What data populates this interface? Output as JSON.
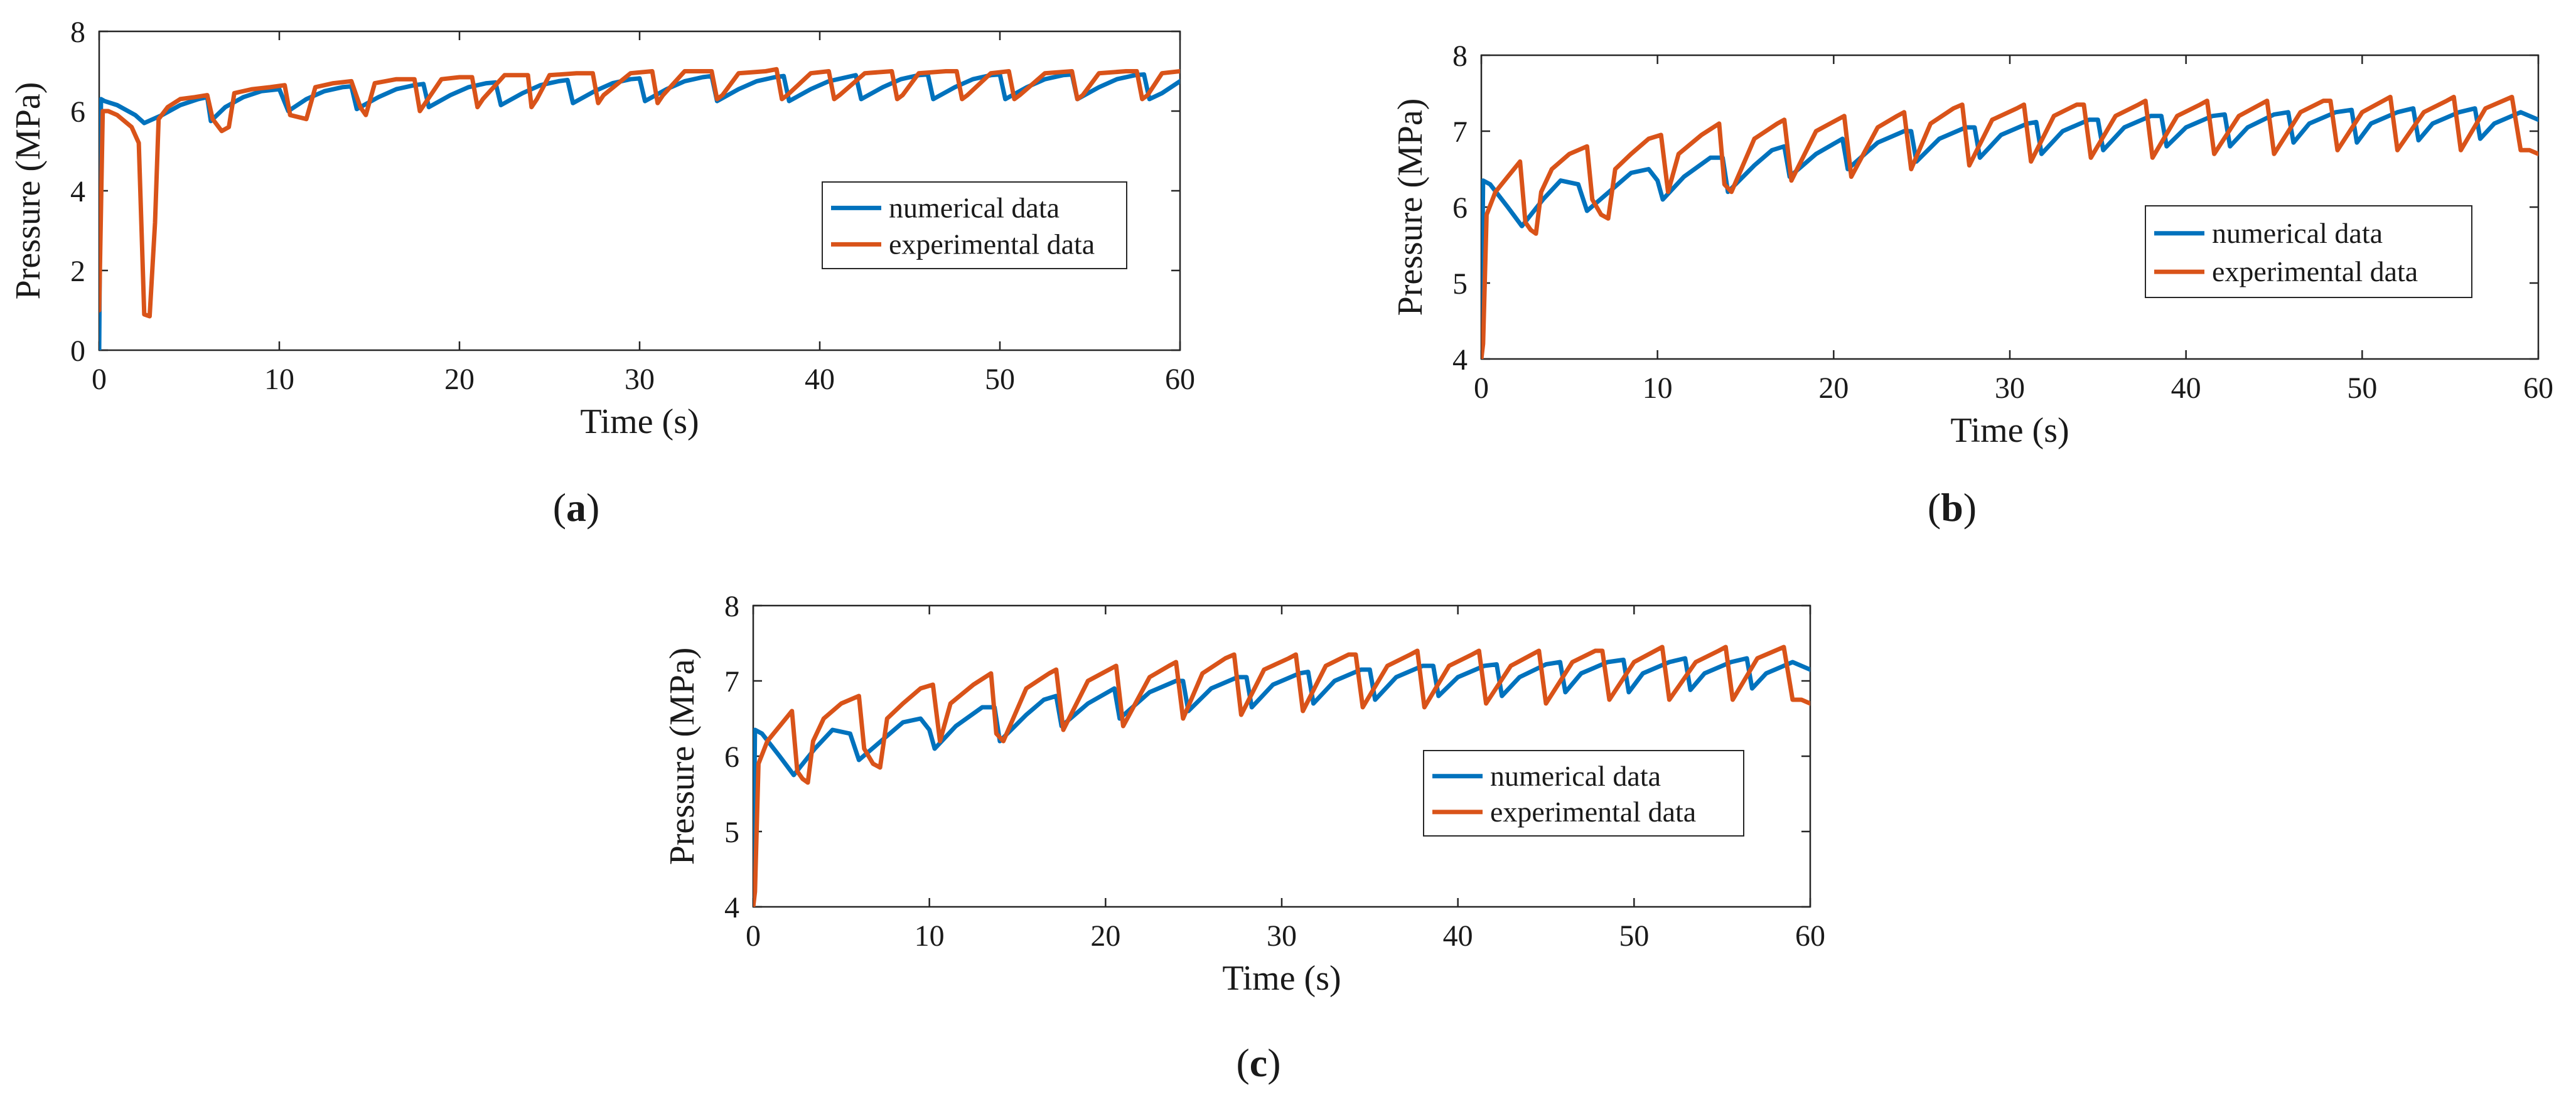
{
  "figure": {
    "panel_labels": [
      {
        "open": "(",
        "letter": "a",
        "close": ")"
      },
      {
        "open": "(",
        "letter": "b",
        "close": ")"
      },
      {
        "open": "(",
        "letter": "c",
        "close": ")"
      }
    ]
  },
  "colors": {
    "numerical": "#0072BD",
    "experimental": "#D95319",
    "axis": "#262626",
    "background": "#ffffff"
  },
  "chart_data": [
    {
      "type": "line",
      "panel": "a",
      "xlabel": "Time (s)",
      "ylabel": "Pressure (MPa)",
      "xlim": [
        0,
        60
      ],
      "ylim": [
        0,
        8
      ],
      "xticks": [
        0,
        10,
        20,
        30,
        40,
        50,
        60
      ],
      "yticks": [
        0,
        2,
        4,
        6,
        8
      ],
      "legend_position": "center-right",
      "series": [
        {
          "name": "numerical data",
          "key": "numerical",
          "x": [
            0,
            0.1,
            0.3,
            1,
            2,
            2.5,
            3.5,
            4.5,
            5.5,
            6,
            6.2,
            7,
            8,
            9,
            10,
            10.5,
            11.5,
            12.5,
            13.5,
            14,
            14.3,
            15.5,
            16.5,
            17.5,
            18,
            18.3,
            19.5,
            20.5,
            21.5,
            22,
            22.3,
            23.5,
            24.5,
            25.5,
            26,
            26.3,
            27.5,
            28.5,
            29.5,
            30,
            30.3,
            31.5,
            32.5,
            33.5,
            34,
            34.3,
            35.5,
            36.5,
            37.5,
            38,
            38.3,
            39.5,
            40.5,
            41.5,
            42,
            42.3,
            43.5,
            44.5,
            45.5,
            46,
            46.3,
            47.5,
            48.5,
            49.5,
            50,
            50.3,
            51.5,
            52.5,
            53.5,
            54,
            54.3,
            55.5,
            56.5,
            57.5,
            58,
            58.3,
            59,
            60
          ],
          "y": [
            0,
            6.3,
            6.25,
            6.15,
            5.9,
            5.7,
            5.9,
            6.15,
            6.3,
            6.35,
            5.75,
            6.1,
            6.35,
            6.5,
            6.55,
            6.0,
            6.3,
            6.5,
            6.6,
            6.62,
            6.05,
            6.35,
            6.55,
            6.65,
            6.68,
            6.1,
            6.4,
            6.6,
            6.7,
            6.72,
            6.15,
            6.45,
            6.65,
            6.75,
            6.78,
            6.2,
            6.5,
            6.7,
            6.8,
            6.82,
            6.25,
            6.55,
            6.75,
            6.85,
            6.88,
            6.25,
            6.55,
            6.75,
            6.85,
            6.88,
            6.25,
            6.55,
            6.75,
            6.85,
            6.9,
            6.3,
            6.6,
            6.8,
            6.9,
            6.92,
            6.3,
            6.6,
            6.8,
            6.9,
            6.92,
            6.3,
            6.6,
            6.8,
            6.9,
            6.92,
            6.3,
            6.6,
            6.8,
            6.9,
            6.92,
            6.3,
            6.45,
            6.75
          ]
        },
        {
          "name": "experimental data",
          "key": "experimental",
          "x": [
            0,
            0.2,
            0.5,
            1.0,
            1.8,
            2.2,
            2.5,
            2.8,
            3.1,
            3.3,
            3.8,
            4.5,
            5.3,
            6.0,
            6.3,
            6.8,
            7.2,
            7.5,
            8.5,
            9.5,
            10.3,
            10.6,
            11.5,
            12.0,
            13.0,
            14.0,
            14.5,
            14.8,
            15.3,
            16.5,
            17.5,
            17.8,
            18.1,
            19.0,
            20.0,
            20.7,
            21.0,
            21.3,
            22.5,
            23.8,
            24.0,
            24.3,
            25.0,
            26.5,
            27.4,
            27.7,
            28.0,
            29.5,
            30.7,
            31.0,
            31.3,
            32.5,
            34.0,
            34.3,
            34.6,
            35.5,
            37.0,
            37.6,
            37.9,
            38.2,
            39.5,
            40.5,
            40.8,
            41.1,
            42.5,
            44.0,
            44.3,
            44.6,
            45.5,
            47.0,
            47.6,
            47.9,
            48.2,
            49.5,
            50.5,
            50.8,
            51.1,
            52.5,
            54.0,
            54.3,
            54.6,
            55.5,
            57.0,
            57.6,
            57.9,
            58.2,
            59.0,
            60
          ],
          "y": [
            1.0,
            6.0,
            6.0,
            5.9,
            5.6,
            5.2,
            0.9,
            0.85,
            3.2,
            5.8,
            6.1,
            6.3,
            6.35,
            6.4,
            5.8,
            5.5,
            5.6,
            6.45,
            6.55,
            6.6,
            6.65,
            5.9,
            5.8,
            6.6,
            6.7,
            6.75,
            6.1,
            5.9,
            6.7,
            6.8,
            6.8,
            6.0,
            6.2,
            6.8,
            6.85,
            6.85,
            6.1,
            6.3,
            6.9,
            6.9,
            6.1,
            6.3,
            6.9,
            6.95,
            6.95,
            6.2,
            6.4,
            6.95,
            7.0,
            6.2,
            6.4,
            7.0,
            7.0,
            6.3,
            6.4,
            6.95,
            7.0,
            7.05,
            6.3,
            6.4,
            6.95,
            7.0,
            6.3,
            6.4,
            6.95,
            7.0,
            6.3,
            6.4,
            6.95,
            7.0,
            7.0,
            6.3,
            6.4,
            6.95,
            7.0,
            6.3,
            6.4,
            6.95,
            7.0,
            6.3,
            6.4,
            6.95,
            7.0,
            7.0,
            6.3,
            6.4,
            6.95,
            7.0
          ]
        }
      ]
    },
    {
      "type": "line",
      "panel": "b",
      "xlabel": "Time (s)",
      "ylabel": "Pressure (MPa)",
      "xlim": [
        0,
        60
      ],
      "ylim": [
        4,
        8
      ],
      "xticks": [
        0,
        10,
        20,
        30,
        40,
        50,
        60
      ],
      "yticks": [
        4,
        5,
        6,
        7,
        8
      ],
      "legend_position": "center-right",
      "series": [
        {
          "name": "numerical data",
          "key": "numerical",
          "x": [
            0,
            0.1,
            0.5,
            1.5,
            2.3,
            3.5,
            4.5,
            5.5,
            6.0,
            7.0,
            8.5,
            9.5,
            10.0,
            10.3,
            11.5,
            13.0,
            13.7,
            14.0,
            15.5,
            16.5,
            17.2,
            17.5,
            19.0,
            20.5,
            20.8,
            22.5,
            24.0,
            24.4,
            24.7,
            26.0,
            27.5,
            28.0,
            28.3,
            29.5,
            31.0,
            31.5,
            31.8,
            33.0,
            34.5,
            35.0,
            35.3,
            36.5,
            38.0,
            38.6,
            38.9,
            40.0,
            41.5,
            42.2,
            42.5,
            43.5,
            45.0,
            45.8,
            46.1,
            47.0,
            48.5,
            49.4,
            49.7,
            50.5,
            52.0,
            52.9,
            53.2,
            54.0,
            55.5,
            56.4,
            56.7,
            57.5,
            59.0,
            60
          ],
          "y": [
            4,
            6.35,
            6.3,
            6.0,
            5.75,
            6.1,
            6.35,
            6.3,
            5.95,
            6.15,
            6.45,
            6.5,
            6.35,
            6.1,
            6.4,
            6.65,
            6.65,
            6.2,
            6.55,
            6.75,
            6.8,
            6.4,
            6.7,
            6.9,
            6.5,
            6.85,
            7.0,
            7.0,
            6.6,
            6.9,
            7.05,
            7.05,
            6.65,
            6.95,
            7.1,
            7.12,
            6.7,
            7.0,
            7.15,
            7.15,
            6.75,
            7.05,
            7.2,
            7.2,
            6.8,
            7.05,
            7.2,
            7.22,
            6.8,
            7.05,
            7.22,
            7.25,
            6.85,
            7.1,
            7.25,
            7.28,
            6.85,
            7.1,
            7.25,
            7.3,
            6.88,
            7.1,
            7.25,
            7.3,
            6.9,
            7.1,
            7.25,
            7.15
          ]
        },
        {
          "name": "experimental data",
          "key": "experimental",
          "x": [
            0,
            0.1,
            0.3,
            0.8,
            1.5,
            2.2,
            2.5,
            2.8,
            3.1,
            3.4,
            4.0,
            5.0,
            6.0,
            6.3,
            6.8,
            7.2,
            7.6,
            8.5,
            9.5,
            10.2,
            10.6,
            11.2,
            12.5,
            13.5,
            13.8,
            14.2,
            15.5,
            16.8,
            17.2,
            17.6,
            19.0,
            20.2,
            20.6,
            21.0,
            22.5,
            23.6,
            24.0,
            24.4,
            25.5,
            26.8,
            27.3,
            27.7,
            29.0,
            30.4,
            30.8,
            31.2,
            32.5,
            33.8,
            34.2,
            34.6,
            36.0,
            37.3,
            37.7,
            38.1,
            39.5,
            40.8,
            41.2,
            41.6,
            43.0,
            44.2,
            44.6,
            45.0,
            46.5,
            47.8,
            48.2,
            48.6,
            50.0,
            51.2,
            51.6,
            52.0,
            53.5,
            54.8,
            55.2,
            55.6,
            57.0,
            58.5,
            59.0,
            59.5,
            60
          ],
          "y": [
            4,
            4.2,
            5.9,
            6.2,
            6.4,
            6.6,
            5.8,
            5.7,
            5.65,
            6.2,
            6.5,
            6.7,
            6.8,
            6.1,
            5.9,
            5.85,
            6.5,
            6.7,
            6.9,
            6.95,
            6.2,
            6.7,
            6.95,
            7.1,
            6.3,
            6.2,
            6.9,
            7.1,
            7.15,
            6.35,
            7.0,
            7.15,
            7.2,
            6.4,
            7.05,
            7.2,
            7.25,
            6.5,
            7.1,
            7.3,
            7.35,
            6.55,
            7.15,
            7.3,
            7.35,
            6.6,
            7.2,
            7.35,
            7.35,
            6.65,
            7.2,
            7.35,
            7.4,
            6.65,
            7.2,
            7.35,
            7.4,
            6.7,
            7.2,
            7.35,
            7.4,
            6.7,
            7.25,
            7.4,
            7.4,
            6.75,
            7.25,
            7.4,
            7.45,
            6.75,
            7.25,
            7.4,
            7.45,
            6.75,
            7.3,
            7.45,
            6.75,
            6.75,
            6.7
          ]
        }
      ]
    },
    {
      "type": "line",
      "panel": "c",
      "xlabel": "Time (s)",
      "ylabel": "Pressure (MPa)",
      "xlim": [
        0,
        60
      ],
      "ylim": [
        4,
        8
      ],
      "xticks": [
        0,
        10,
        20,
        30,
        40,
        50,
        60
      ],
      "yticks": [
        4,
        5,
        6,
        7,
        8
      ],
      "legend_position": "center-right",
      "series": [
        {
          "name": "numerical data",
          "key": "numerical",
          "x": [
            0,
            0.1,
            0.5,
            1.5,
            2.3,
            3.5,
            4.5,
            5.5,
            6.0,
            7.0,
            8.5,
            9.5,
            10.0,
            10.3,
            11.5,
            13.0,
            13.7,
            14.0,
            15.5,
            16.5,
            17.2,
            17.5,
            19.0,
            20.5,
            20.8,
            22.5,
            24.0,
            24.4,
            24.7,
            26.0,
            27.5,
            28.0,
            28.3,
            29.5,
            31.0,
            31.5,
            31.8,
            33.0,
            34.5,
            35.0,
            35.3,
            36.5,
            38.0,
            38.6,
            38.9,
            40.0,
            41.5,
            42.2,
            42.5,
            43.5,
            45.0,
            45.8,
            46.1,
            47.0,
            48.5,
            49.4,
            49.7,
            50.5,
            52.0,
            52.9,
            53.2,
            54.0,
            55.5,
            56.4,
            56.7,
            57.5,
            59.0,
            60
          ],
          "y": [
            4,
            6.35,
            6.3,
            6.0,
            5.75,
            6.1,
            6.35,
            6.3,
            5.95,
            6.15,
            6.45,
            6.5,
            6.35,
            6.1,
            6.4,
            6.65,
            6.65,
            6.2,
            6.55,
            6.75,
            6.8,
            6.4,
            6.7,
            6.9,
            6.5,
            6.85,
            7.0,
            7.0,
            6.6,
            6.9,
            7.05,
            7.05,
            6.65,
            6.95,
            7.1,
            7.12,
            6.7,
            7.0,
            7.15,
            7.15,
            6.75,
            7.05,
            7.2,
            7.2,
            6.8,
            7.05,
            7.2,
            7.22,
            6.8,
            7.05,
            7.22,
            7.25,
            6.85,
            7.1,
            7.25,
            7.28,
            6.85,
            7.1,
            7.25,
            7.3,
            6.88,
            7.1,
            7.25,
            7.3,
            6.9,
            7.1,
            7.25,
            7.15
          ]
        },
        {
          "name": "experimental data",
          "key": "experimental",
          "x": [
            0,
            0.1,
            0.3,
            0.8,
            1.5,
            2.2,
            2.5,
            2.8,
            3.1,
            3.4,
            4.0,
            5.0,
            6.0,
            6.3,
            6.8,
            7.2,
            7.6,
            8.5,
            9.5,
            10.2,
            10.6,
            11.2,
            12.5,
            13.5,
            13.8,
            14.2,
            15.5,
            16.8,
            17.2,
            17.6,
            19.0,
            20.2,
            20.6,
            21.0,
            22.5,
            23.6,
            24.0,
            24.4,
            25.5,
            26.8,
            27.3,
            27.7,
            29.0,
            30.4,
            30.8,
            31.2,
            32.5,
            33.8,
            34.2,
            34.6,
            36.0,
            37.3,
            37.7,
            38.1,
            39.5,
            40.8,
            41.2,
            41.6,
            43.0,
            44.2,
            44.6,
            45.0,
            46.5,
            47.8,
            48.2,
            48.6,
            50.0,
            51.2,
            51.6,
            52.0,
            53.5,
            54.8,
            55.2,
            55.6,
            57.0,
            58.5,
            59.0,
            59.5,
            60
          ],
          "y": [
            4,
            4.2,
            5.9,
            6.2,
            6.4,
            6.6,
            5.8,
            5.7,
            5.65,
            6.2,
            6.5,
            6.7,
            6.8,
            6.1,
            5.9,
            5.85,
            6.5,
            6.7,
            6.9,
            6.95,
            6.2,
            6.7,
            6.95,
            7.1,
            6.3,
            6.2,
            6.9,
            7.1,
            7.15,
            6.35,
            7.0,
            7.15,
            7.2,
            6.4,
            7.05,
            7.2,
            7.25,
            6.5,
            7.1,
            7.3,
            7.35,
            6.55,
            7.15,
            7.3,
            7.35,
            6.6,
            7.2,
            7.35,
            7.35,
            6.65,
            7.2,
            7.35,
            7.4,
            6.65,
            7.2,
            7.35,
            7.4,
            6.7,
            7.2,
            7.35,
            7.4,
            6.7,
            7.25,
            7.4,
            7.4,
            6.75,
            7.25,
            7.4,
            7.45,
            6.75,
            7.25,
            7.4,
            7.45,
            6.75,
            7.3,
            7.45,
            6.75,
            6.75,
            6.7
          ]
        }
      ]
    }
  ]
}
